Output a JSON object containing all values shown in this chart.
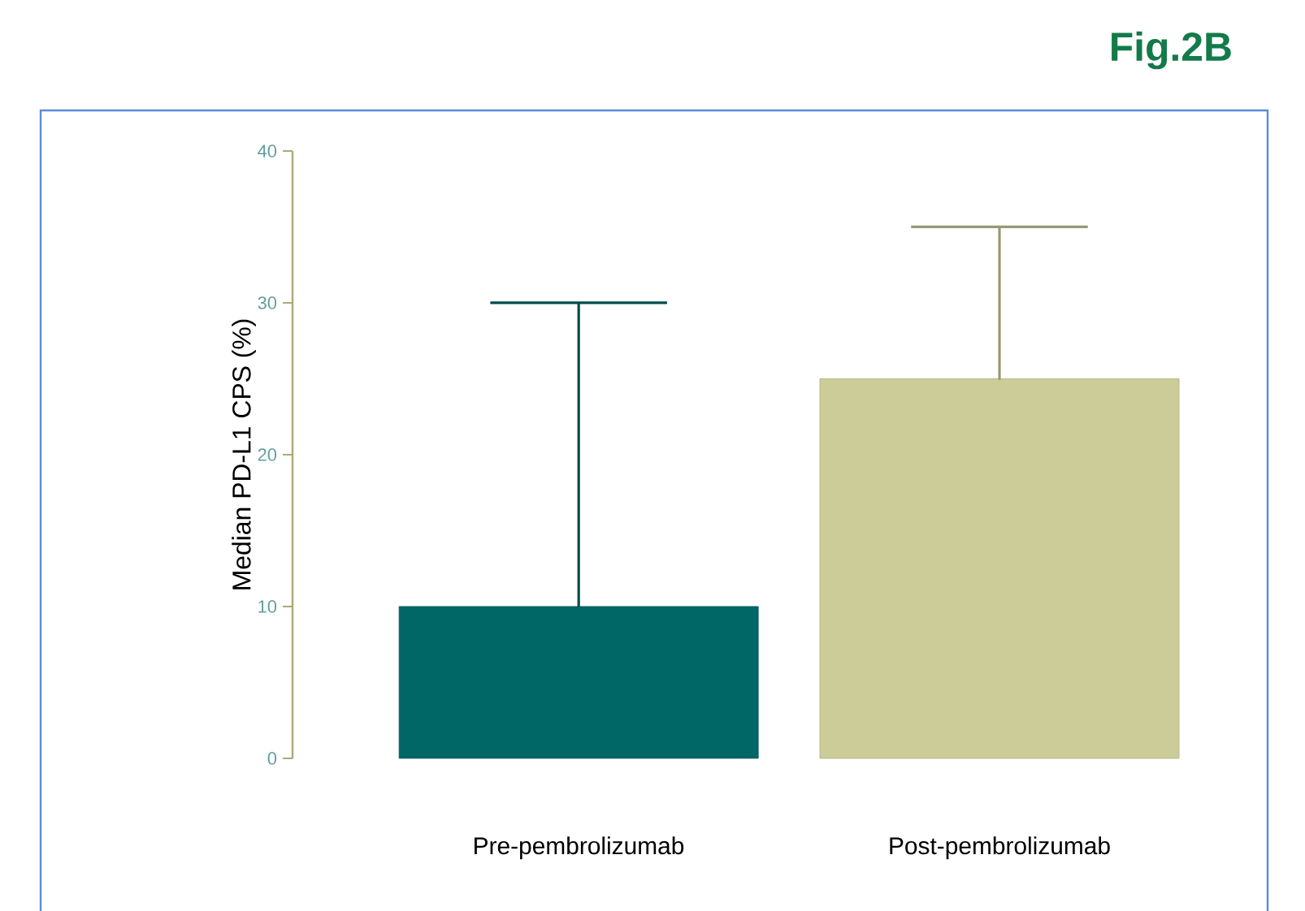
{
  "chart_data": {
    "type": "bar",
    "title": "Fig.2B",
    "ylabel": "Median PD-L1 CPS (%)",
    "categories": [
      "Pre-pembrolizumab",
      "Post-pembrolizumab"
    ],
    "values": [
      10,
      25
    ],
    "colors": [
      "#006666",
      "#cccc99"
    ],
    "errors": [
      [
        10,
        30
      ],
      [
        25,
        35
      ]
    ],
    "ylim": [
      0,
      40
    ],
    "yticks": [
      0,
      10,
      20,
      30,
      40
    ]
  }
}
